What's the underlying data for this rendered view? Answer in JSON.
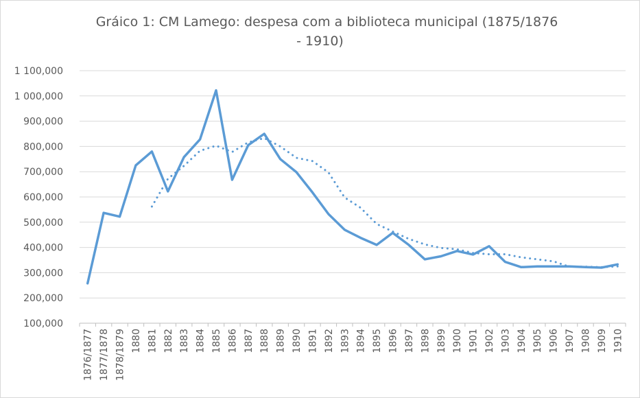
{
  "chart_data": {
    "type": "line",
    "title_line1": "Gráico 1: CM Lamego: despesa com a biblioteca municipal  (1875/1876",
    "title_line2": "- 1910)",
    "ylim": [
      100000,
      1100000
    ],
    "y_ticks": [
      "100,000",
      "200,000",
      "300,000",
      "400,000",
      "500,000",
      "600,000",
      "700,000",
      "800,000",
      "900,000",
      "1 000,000",
      "1 100,000"
    ],
    "categories": [
      "1876/1877",
      "1877/1878",
      "1878/1879",
      "1880",
      "1881",
      "1882",
      "1883",
      "1884",
      "1885",
      "1886",
      "1887",
      "1888",
      "1889",
      "1890",
      "1891",
      "1892",
      "1893",
      "1894",
      "1895",
      "1896",
      "1897",
      "1898",
      "1899",
      "1900",
      "1901",
      "1902",
      "1903",
      "1904",
      "1905",
      "1906",
      "1907",
      "1908",
      "1909",
      "1910"
    ],
    "series": [
      {
        "values": [
          258000,
          537000,
          522000,
          725000,
          780000,
          622000,
          758000,
          828000,
          1022000,
          668000,
          805000,
          850000,
          750000,
          698000,
          618000,
          532000,
          470000,
          438000,
          410000,
          458000,
          410000,
          353000,
          365000,
          386000,
          372000,
          405000,
          343000,
          322000,
          325000,
          325000,
          325000,
          322000,
          320000,
          333000
        ],
        "color": "#5b9bd5",
        "style": "solid"
      },
      {
        "values": [
          null,
          null,
          null,
          null,
          562000,
          672000,
          723000,
          783000,
          803000,
          778000,
          816000,
          833000,
          800000,
          755000,
          742000,
          697000,
          598000,
          557000,
          493000,
          463000,
          434000,
          412000,
          398000,
          393000,
          378000,
          373000,
          373000,
          361000,
          353000,
          345000,
          324000,
          324000,
          322000,
          325000
        ],
        "color": "#5b9bd5",
        "style": "dotted"
      }
    ],
    "grid": true,
    "legend": "none"
  }
}
